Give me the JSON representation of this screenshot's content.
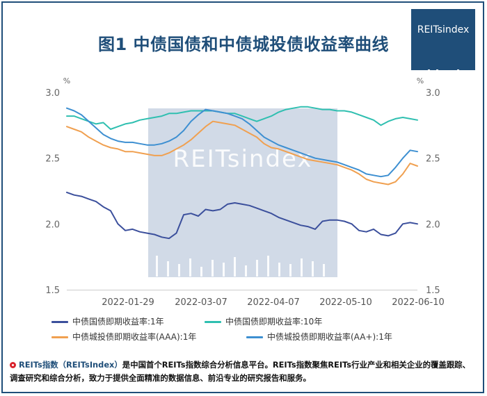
{
  "title": "图1 中债国债和中债城投债收益率曲线",
  "logo_text": "REITsindex",
  "watermark_text": "REITsindex",
  "footer": {
    "brand": "REITs指数（REITsIndex）",
    "text": "是中国首个REITs指数综合分析信息平台。REITs指数聚焦REITs行业产业和相关企业的覆盖跟踪、调查研究和综合分析，致力于提供全面精准的数据信息、前沿专业的研究报告和服务。"
  },
  "colors": {
    "title": "#1f4e79",
    "series": [
      "#3b4f9c",
      "#2fbfb0",
      "#f0a050",
      "#3d8fd1"
    ],
    "watermark": "#c9d4e3"
  },
  "chart_data": {
    "type": "line",
    "y_unit": "%",
    "ylim": [
      1.5,
      3.0
    ],
    "yticks": [
      "3.0",
      "2.5",
      "2.0",
      "1.5"
    ],
    "x_tick_labels": [
      "2022-01-29",
      "2022-03-07",
      "2022-04-07",
      "2022-05-10",
      "2022-06-10"
    ],
    "grid": false,
    "legend_position": "bottom",
    "series": [
      {
        "name": "中债国债即期收益率:1年",
        "values": [
          2.24,
          2.22,
          2.21,
          2.19,
          2.17,
          2.13,
          2.1,
          2.0,
          1.95,
          1.96,
          1.94,
          1.93,
          1.92,
          1.9,
          1.89,
          1.93,
          2.07,
          2.08,
          2.06,
          2.11,
          2.1,
          2.11,
          2.15,
          2.16,
          2.15,
          2.14,
          2.12,
          2.1,
          2.08,
          2.05,
          2.03,
          2.01,
          1.99,
          1.98,
          1.96,
          2.02,
          2.03,
          2.03,
          2.02,
          2.0,
          1.95,
          1.94,
          1.96,
          1.92,
          1.91,
          1.93,
          2.0,
          2.01,
          2.0
        ]
      },
      {
        "name": "中债国债即期收益率:10年",
        "values": [
          2.82,
          2.82,
          2.8,
          2.78,
          2.76,
          2.77,
          2.72,
          2.74,
          2.76,
          2.77,
          2.79,
          2.8,
          2.81,
          2.82,
          2.84,
          2.84,
          2.85,
          2.86,
          2.86,
          2.86,
          2.86,
          2.85,
          2.84,
          2.84,
          2.82,
          2.8,
          2.78,
          2.8,
          2.82,
          2.85,
          2.87,
          2.88,
          2.89,
          2.89,
          2.88,
          2.87,
          2.87,
          2.86,
          2.86,
          2.85,
          2.83,
          2.81,
          2.79,
          2.75,
          2.78,
          2.8,
          2.81,
          2.8,
          2.79
        ]
      },
      {
        "name": "中债城投债即期收益率(AAA):1年",
        "values": [
          2.74,
          2.72,
          2.7,
          2.66,
          2.63,
          2.6,
          2.58,
          2.57,
          2.55,
          2.55,
          2.54,
          2.53,
          2.52,
          2.52,
          2.54,
          2.57,
          2.6,
          2.64,
          2.69,
          2.74,
          2.78,
          2.77,
          2.76,
          2.75,
          2.72,
          2.69,
          2.66,
          2.61,
          2.58,
          2.57,
          2.55,
          2.53,
          2.51,
          2.49,
          2.48,
          2.47,
          2.46,
          2.45,
          2.43,
          2.41,
          2.38,
          2.34,
          2.32,
          2.31,
          2.3,
          2.32,
          2.38,
          2.46,
          2.44
        ]
      },
      {
        "name": "中债城投债即期收益率(AA+):1年",
        "values": [
          2.88,
          2.86,
          2.83,
          2.78,
          2.73,
          2.68,
          2.65,
          2.63,
          2.62,
          2.62,
          2.61,
          2.6,
          2.6,
          2.61,
          2.63,
          2.66,
          2.71,
          2.78,
          2.83,
          2.87,
          2.86,
          2.85,
          2.84,
          2.82,
          2.8,
          2.76,
          2.71,
          2.66,
          2.63,
          2.6,
          2.58,
          2.56,
          2.54,
          2.52,
          2.5,
          2.49,
          2.48,
          2.47,
          2.45,
          2.43,
          2.41,
          2.38,
          2.37,
          2.36,
          2.37,
          2.43,
          2.5,
          2.56,
          2.55
        ]
      }
    ]
  }
}
